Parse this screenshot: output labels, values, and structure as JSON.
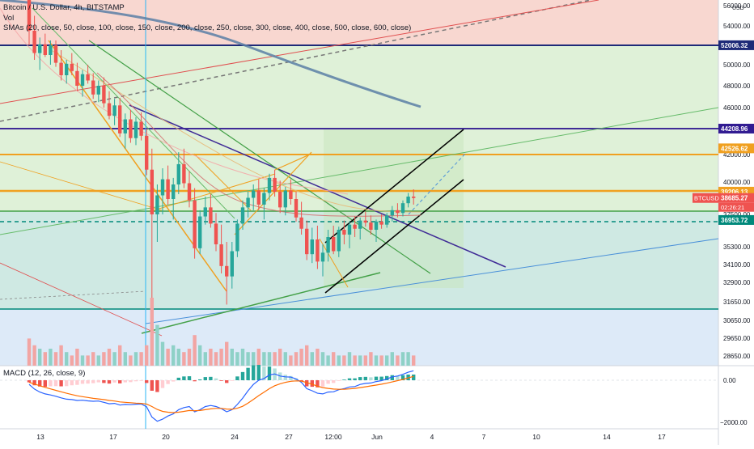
{
  "chart_data": {
    "type": "candlestick",
    "title": "Bitcoin / U.S. Dollar, 4h, BITSTAMP",
    "volume_label": "Vol",
    "indicator_label": "SMAs (20, close, 50, close, 100, close, 150, close, 200, close, 250, close, 300, close, 400, close, 500, close, 600, close)",
    "symbol": "BTCUSD",
    "last_price": "38685.27",
    "countdown": "02:26:21",
    "currency": "USD",
    "y_ticks": [
      "56000.00",
      "54000.00",
      "52000.00",
      "50000.00",
      "48000.00",
      "46000.00",
      "42000.00",
      "40000.00",
      "38600.00",
      "37500.00",
      "35300.00",
      "34100.00",
      "32900.00",
      "31650.00",
      "30650.00",
      "29650.00",
      "28650.00"
    ],
    "price_labels": [
      {
        "text": "52006.32",
        "color": "#1e2a78"
      },
      {
        "text": "44208.96",
        "color": "#311b92"
      },
      {
        "text": "42526.62",
        "color": "#f0a020"
      },
      {
        "text": "39206.13",
        "color": "#f0a020"
      },
      {
        "text": "38685.27",
        "color": "#ef5350"
      },
      {
        "text": "36953.72",
        "color": "#00897b"
      }
    ],
    "x_ticks": [
      "13",
      "17",
      "20",
      "24",
      "27",
      "12:00",
      "Jun",
      "4",
      "7",
      "10",
      "14",
      "17"
    ],
    "ohlc": [
      [
        57000,
        57500,
        52000,
        53500
      ],
      [
        53500,
        55000,
        50500,
        51200
      ],
      [
        51200,
        52800,
        49500,
        52100
      ],
      [
        52100,
        53200,
        50800,
        51000
      ],
      [
        51000,
        52500,
        50000,
        52000
      ],
      [
        52000,
        52500,
        49800,
        50200
      ],
      [
        50200,
        51500,
        48500,
        49000
      ],
      [
        49000,
        50500,
        48200,
        50100
      ],
      [
        50100,
        51200,
        49000,
        49400
      ],
      [
        49400,
        50200,
        47500,
        48000
      ],
      [
        48000,
        49500,
        47000,
        49100
      ],
      [
        49100,
        50000,
        48200,
        48500
      ],
      [
        48500,
        49200,
        46800,
        47200
      ],
      [
        47200,
        48500,
        46500,
        48000
      ],
      [
        48000,
        48800,
        46000,
        46400
      ],
      [
        46400,
        47500,
        45000,
        45300
      ],
      [
        45300,
        46800,
        44500,
        46200
      ],
      [
        46200,
        46900,
        43500,
        43800
      ],
      [
        43800,
        45500,
        42500,
        45000
      ],
      [
        45000,
        45800,
        43000,
        43400
      ],
      [
        43400,
        45200,
        42800,
        44800
      ],
      [
        44800,
        45600,
        43200,
        43600
      ],
      [
        43600,
        44200,
        40500,
        40900
      ],
      [
        40900,
        42500,
        30000,
        37500
      ],
      [
        37500,
        39800,
        35500,
        38900
      ],
      [
        38900,
        41000,
        37500,
        40200
      ],
      [
        40200,
        41200,
        38200,
        38600
      ],
      [
        38600,
        40300,
        37000,
        39800
      ],
      [
        39800,
        42200,
        39000,
        41300
      ],
      [
        41300,
        42500,
        39500,
        39900
      ],
      [
        39900,
        40800,
        38000,
        38500
      ],
      [
        38500,
        39500,
        34500,
        35200
      ],
      [
        35200,
        37800,
        34800,
        37300
      ],
      [
        37300,
        38800,
        36500,
        38000
      ],
      [
        38000,
        39000,
        36200,
        36600
      ],
      [
        36600,
        37600,
        35000,
        35400
      ],
      [
        35400,
        36500,
        33500,
        34000
      ],
      [
        34000,
        35500,
        31500,
        33300
      ],
      [
        33300,
        35500,
        32500,
        35000
      ],
      [
        35000,
        37000,
        34600,
        36600
      ],
      [
        36600,
        38500,
        36000,
        38000
      ],
      [
        38000,
        39200,
        37200,
        38700
      ],
      [
        38700,
        39800,
        37800,
        39300
      ],
      [
        39300,
        40200,
        37800,
        38200
      ],
      [
        38200,
        39500,
        37000,
        39100
      ],
      [
        39100,
        40600,
        38500,
        40300
      ],
      [
        40300,
        40900,
        38800,
        39200
      ],
      [
        39200,
        40100,
        37600,
        38000
      ],
      [
        38000,
        39600,
        37400,
        39300
      ],
      [
        39300,
        40200,
        38200,
        38600
      ],
      [
        38600,
        39200,
        36800,
        37200
      ],
      [
        37200,
        38400,
        35800,
        36100
      ],
      [
        36100,
        36900,
        34400,
        34800
      ],
      [
        34800,
        36200,
        34200,
        35600
      ],
      [
        35600,
        36400,
        33800,
        34300
      ],
      [
        34300,
        35400,
        33300,
        34900
      ],
      [
        34900,
        36000,
        34300,
        35700
      ],
      [
        35700,
        36400,
        34800,
        35000
      ],
      [
        35000,
        36300,
        34600,
        36000
      ],
      [
        36000,
        36900,
        35400,
        35800
      ],
      [
        35800,
        36800,
        35200,
        36500
      ],
      [
        36500,
        37300,
        35700,
        36100
      ],
      [
        36100,
        37200,
        35600,
        36900
      ],
      [
        36900,
        37700,
        36300,
        36700
      ],
      [
        36700,
        37400,
        35800,
        36000
      ],
      [
        36000,
        37000,
        35500,
        36800
      ],
      [
        36800,
        37500,
        36100,
        36500
      ],
      [
        36500,
        37600,
        36200,
        37400
      ],
      [
        37400,
        38100,
        36800,
        37800
      ],
      [
        37800,
        38300,
        37200,
        37600
      ],
      [
        37600,
        38500,
        37300,
        38300
      ],
      [
        38300,
        39100,
        38000,
        38800
      ],
      [
        38800,
        39400,
        38200,
        38685
      ]
    ],
    "volume": [
      8,
      6,
      5,
      4,
      5,
      4,
      6,
      4,
      3,
      5,
      3,
      3,
      4,
      3,
      4,
      5,
      4,
      6,
      4,
      3,
      4,
      4,
      6,
      20,
      12,
      7,
      5,
      6,
      5,
      4,
      5,
      9,
      6,
      4,
      5,
      4,
      5,
      7,
      5,
      4,
      5,
      4,
      4,
      5,
      4,
      4,
      4,
      5,
      4,
      3,
      4,
      5,
      6,
      4,
      5,
      4,
      3,
      4,
      3,
      3,
      4,
      3,
      3,
      3,
      4,
      3,
      3,
      3,
      4,
      3,
      4,
      4,
      3
    ],
    "macd": [
      -200,
      -420,
      -560,
      -650,
      -700,
      -760,
      -840,
      -900,
      -920,
      -960,
      -950,
      -980,
      -1000,
      -990,
      -1050,
      -1120,
      -1100,
      -1180,
      -1150,
      -1160,
      -1140,
      -1130,
      -1260,
      -1750,
      -1950,
      -1850,
      -1700,
      -1600,
      -1400,
      -1300,
      -1250,
      -1500,
      -1400,
      -1250,
      -1200,
      -1250,
      -1350,
      -1500,
      -1400,
      -1150,
      -850,
      -500,
      -200,
      0,
      80,
      250,
      300,
      200,
      160,
      150,
      60,
      -100,
      -400,
      -500,
      -620,
      -650,
      -560,
      -550,
      -450,
      -400,
      -320,
      -300,
      -200,
      -150,
      -130,
      -60,
      -20,
      60,
      160,
      200,
      280,
      380,
      450
    ],
    "macd_signal": [
      -100,
      -180,
      -260,
      -340,
      -410,
      -480,
      -550,
      -620,
      -680,
      -740,
      -780,
      -820,
      -860,
      -890,
      -920,
      -960,
      -990,
      -1030,
      -1050,
      -1070,
      -1090,
      -1100,
      -1130,
      -1250,
      -1390,
      -1480,
      -1520,
      -1540,
      -1520,
      -1480,
      -1440,
      -1450,
      -1440,
      -1400,
      -1360,
      -1340,
      -1340,
      -1370,
      -1380,
      -1330,
      -1240,
      -1090,
      -910,
      -730,
      -570,
      -400,
      -260,
      -170,
      -100,
      -50,
      -30,
      -40,
      -110,
      -190,
      -280,
      -350,
      -390,
      -420,
      -430,
      -430,
      -410,
      -390,
      -350,
      -310,
      -270,
      -230,
      -190,
      -140,
      -80,
      -20,
      40,
      110,
      180
    ]
  }
}
